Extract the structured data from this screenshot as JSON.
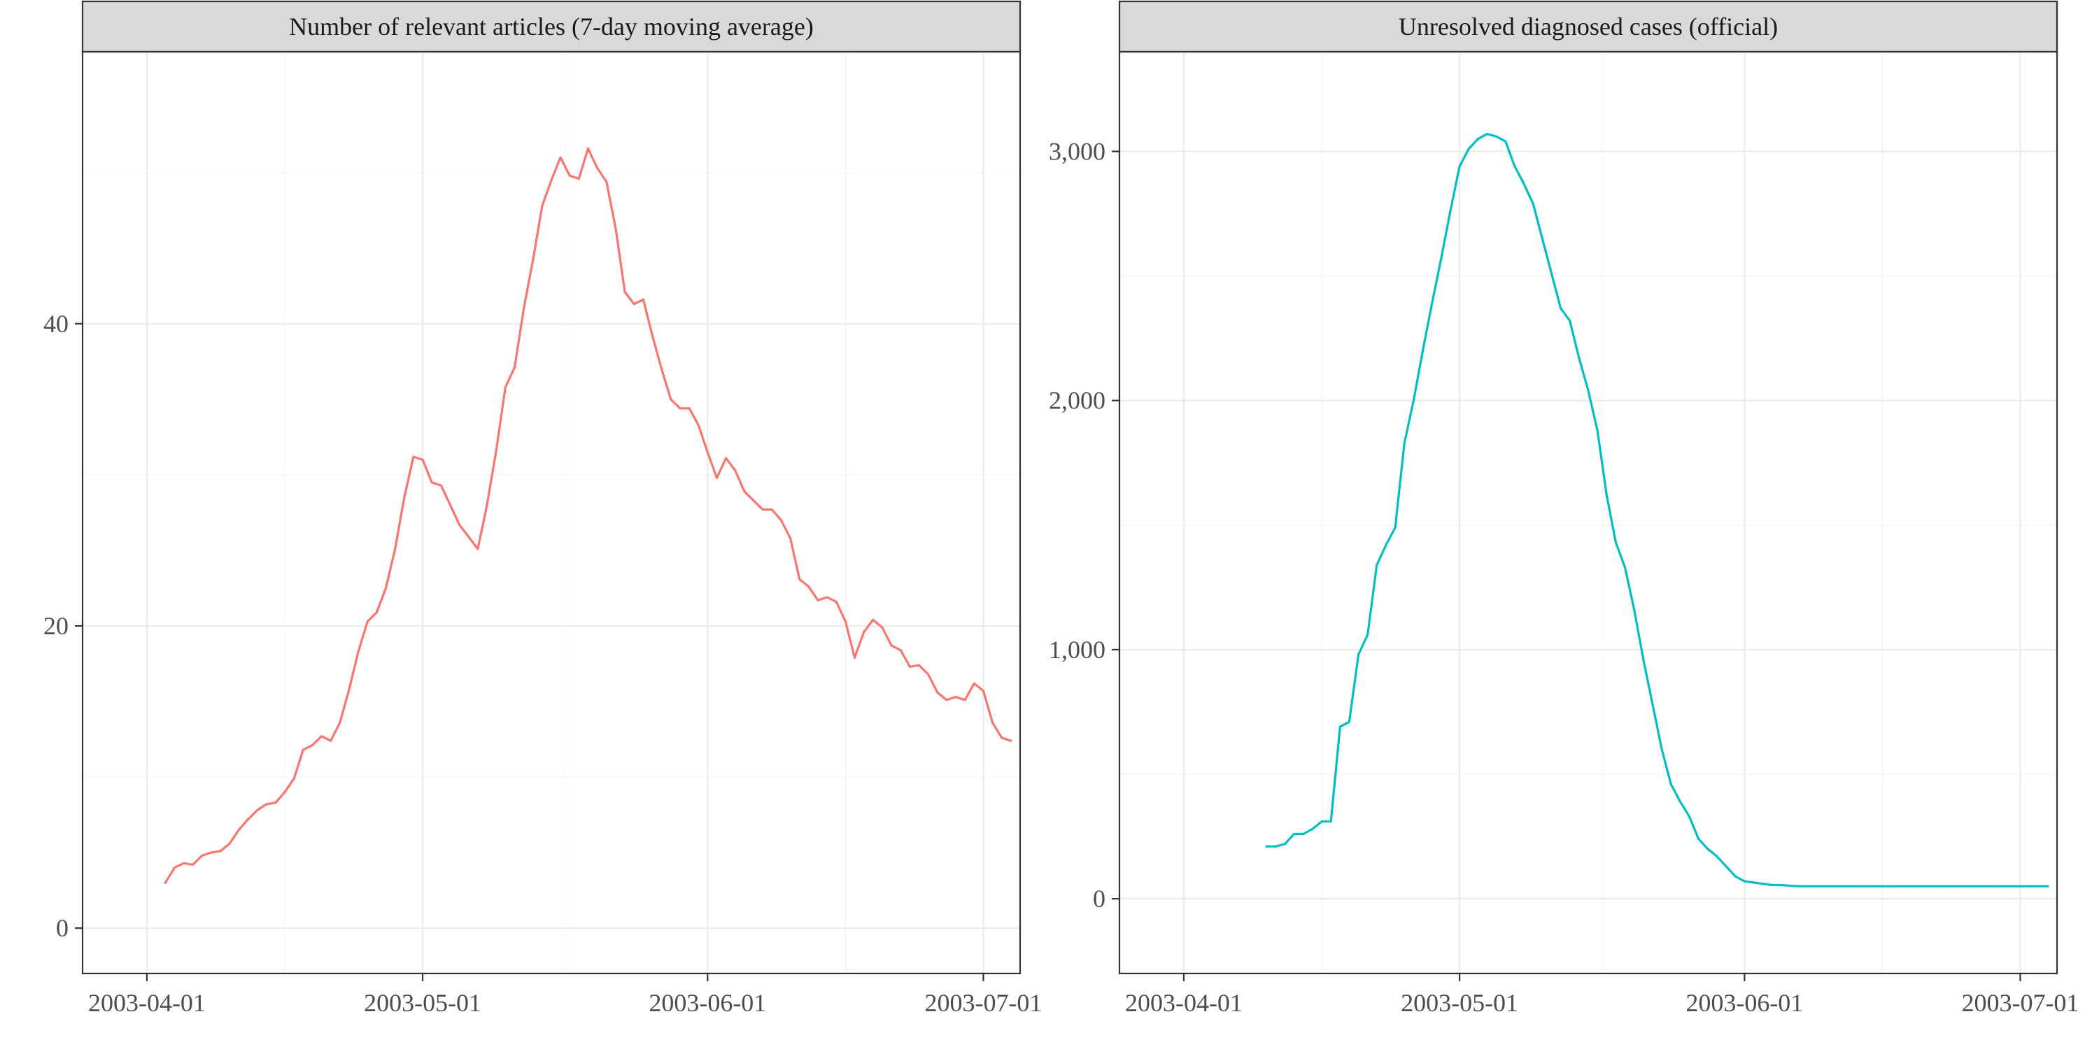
{
  "chart_data": [
    {
      "type": "line",
      "title": "Number of relevant articles (7-day moving average)",
      "xlabel": "",
      "ylabel": "",
      "x_type": "date",
      "xlim": [
        "2003-03-25",
        "2003-07-05"
      ],
      "ylim": [
        -3,
        58
      ],
      "x_ticks": [
        "2003-04-01",
        "2003-05-01",
        "2003-06-01",
        "2003-07-01"
      ],
      "y_ticks": [
        0,
        20,
        40
      ],
      "y_tick_labels": [
        "0",
        "20",
        "40"
      ],
      "grid": true,
      "color": "#F8766D",
      "series": [
        {
          "x": [
            "2003-04-03",
            "2003-04-04",
            "2003-04-05",
            "2003-04-06",
            "2003-04-07",
            "2003-04-08",
            "2003-04-09",
            "2003-04-10",
            "2003-04-11",
            "2003-04-12",
            "2003-04-13",
            "2003-04-14",
            "2003-04-15",
            "2003-04-16",
            "2003-04-17",
            "2003-04-18",
            "2003-04-19",
            "2003-04-20",
            "2003-04-21",
            "2003-04-22",
            "2003-04-23",
            "2003-04-24",
            "2003-04-25",
            "2003-04-26",
            "2003-04-27",
            "2003-04-28",
            "2003-04-29",
            "2003-04-30",
            "2003-05-01",
            "2003-05-02",
            "2003-05-03",
            "2003-05-04",
            "2003-05-05",
            "2003-05-06",
            "2003-05-07",
            "2003-05-08",
            "2003-05-09",
            "2003-05-10",
            "2003-05-11",
            "2003-05-12",
            "2003-05-13",
            "2003-05-14",
            "2003-05-15",
            "2003-05-16",
            "2003-05-17",
            "2003-05-18",
            "2003-05-19",
            "2003-05-20",
            "2003-05-21",
            "2003-05-22",
            "2003-05-23",
            "2003-05-24",
            "2003-05-25",
            "2003-05-26",
            "2003-05-27",
            "2003-05-28",
            "2003-05-29",
            "2003-05-30",
            "2003-05-31",
            "2003-06-01",
            "2003-06-02",
            "2003-06-03",
            "2003-06-04",
            "2003-06-05",
            "2003-06-06",
            "2003-06-07",
            "2003-06-08",
            "2003-06-09",
            "2003-06-10",
            "2003-06-11",
            "2003-06-12",
            "2003-06-13",
            "2003-06-14",
            "2003-06-15",
            "2003-06-16",
            "2003-06-17",
            "2003-06-18",
            "2003-06-19",
            "2003-06-20",
            "2003-06-21",
            "2003-06-22",
            "2003-06-23",
            "2003-06-24",
            "2003-06-25",
            "2003-06-26",
            "2003-06-27",
            "2003-06-28",
            "2003-06-29",
            "2003-06-30",
            "2003-07-01",
            "2003-07-02",
            "2003-07-03",
            "2003-07-04"
          ],
          "y": [
            3.0,
            4.0,
            4.3,
            4.2,
            4.8,
            5.0,
            5.1,
            5.6,
            6.5,
            7.2,
            7.8,
            8.2,
            8.3,
            9.0,
            9.9,
            11.8,
            12.1,
            12.7,
            12.4,
            13.6,
            15.8,
            18.3,
            20.3,
            20.9,
            22.5,
            25.1,
            28.5,
            31.2,
            31.0,
            29.5,
            29.3,
            28.0,
            26.7,
            25.9,
            25.1,
            28.0,
            31.6,
            35.8,
            37.1,
            41.0,
            44.2,
            47.8,
            49.5,
            51.0,
            49.8,
            49.6,
            51.6,
            50.3,
            49.4,
            46.3,
            42.1,
            41.3,
            41.6,
            39.2,
            37.0,
            35.0,
            34.4,
            34.4,
            33.3,
            31.5,
            29.8,
            31.1,
            30.3,
            28.9,
            28.3,
            27.7,
            27.7,
            27.0,
            25.8,
            23.1,
            22.6,
            21.7,
            21.9,
            21.6,
            20.3,
            17.9,
            19.6,
            20.4,
            19.9,
            18.7,
            18.4,
            17.3,
            17.4,
            16.8,
            15.6,
            15.1,
            15.3,
            15.1,
            16.2,
            15.7,
            13.6,
            12.6,
            12.4
          ]
        }
      ]
    },
    {
      "type": "line",
      "title": "Unresolved diagnosed cases (official)",
      "xlabel": "",
      "ylabel": "",
      "x_type": "date",
      "xlim": [
        "2003-03-25",
        "2003-07-05"
      ],
      "ylim": [
        -300,
        3400
      ],
      "x_ticks": [
        "2003-04-01",
        "2003-05-01",
        "2003-06-01",
        "2003-07-01"
      ],
      "y_ticks": [
        0,
        1000,
        2000,
        3000
      ],
      "y_tick_labels": [
        "0",
        "1,000",
        "2,000",
        "3,000"
      ],
      "grid": true,
      "color": "#00BFC4",
      "series": [
        {
          "x": [
            "2003-04-10",
            "2003-04-11",
            "2003-04-12",
            "2003-04-13",
            "2003-04-14",
            "2003-04-15",
            "2003-04-16",
            "2003-04-17",
            "2003-04-18",
            "2003-04-19",
            "2003-04-20",
            "2003-04-21",
            "2003-04-22",
            "2003-04-23",
            "2003-04-24",
            "2003-04-25",
            "2003-04-26",
            "2003-04-27",
            "2003-04-28",
            "2003-04-29",
            "2003-04-30",
            "2003-05-01",
            "2003-05-02",
            "2003-05-03",
            "2003-05-04",
            "2003-05-05",
            "2003-05-06",
            "2003-05-07",
            "2003-05-08",
            "2003-05-09",
            "2003-05-10",
            "2003-05-11",
            "2003-05-12",
            "2003-05-13",
            "2003-05-14",
            "2003-05-15",
            "2003-05-16",
            "2003-05-17",
            "2003-05-18",
            "2003-05-19",
            "2003-05-20",
            "2003-05-21",
            "2003-05-22",
            "2003-05-23",
            "2003-05-24",
            "2003-05-25",
            "2003-05-26",
            "2003-05-27",
            "2003-05-28",
            "2003-05-29",
            "2003-05-30",
            "2003-05-31",
            "2003-06-01",
            "2003-06-02",
            "2003-06-03",
            "2003-06-04",
            "2003-06-05",
            "2003-06-06",
            "2003-06-07",
            "2003-06-08",
            "2003-06-09",
            "2003-06-10",
            "2003-06-11",
            "2003-06-12",
            "2003-06-13",
            "2003-06-14",
            "2003-06-15",
            "2003-06-16",
            "2003-06-17",
            "2003-06-18",
            "2003-06-19",
            "2003-06-20",
            "2003-06-21",
            "2003-06-22",
            "2003-06-23",
            "2003-06-24",
            "2003-06-25",
            "2003-06-26",
            "2003-06-27",
            "2003-06-28",
            "2003-06-29",
            "2003-06-30",
            "2003-07-01",
            "2003-07-02",
            "2003-07-03",
            "2003-07-04"
          ],
          "y": [
            210,
            210,
            220,
            260,
            260,
            280,
            310,
            310,
            690,
            710,
            980,
            1060,
            1340,
            1420,
            1490,
            1830,
            2000,
            2200,
            2390,
            2570,
            2760,
            2940,
            3010,
            3050,
            3070,
            3060,
            3040,
            2940,
            2870,
            2790,
            2650,
            2510,
            2370,
            2320,
            2170,
            2040,
            1880,
            1620,
            1430,
            1330,
            1160,
            960,
            780,
            600,
            460,
            390,
            330,
            240,
            200,
            170,
            130,
            90,
            70,
            65,
            60,
            55,
            55,
            52,
            50,
            50,
            50,
            50,
            50,
            50,
            50,
            50,
            50,
            50,
            50,
            50,
            50,
            50,
            50,
            50,
            50,
            50,
            50,
            50,
            50,
            50,
            50,
            50,
            50,
            50,
            50,
            50
          ]
        }
      ]
    }
  ]
}
